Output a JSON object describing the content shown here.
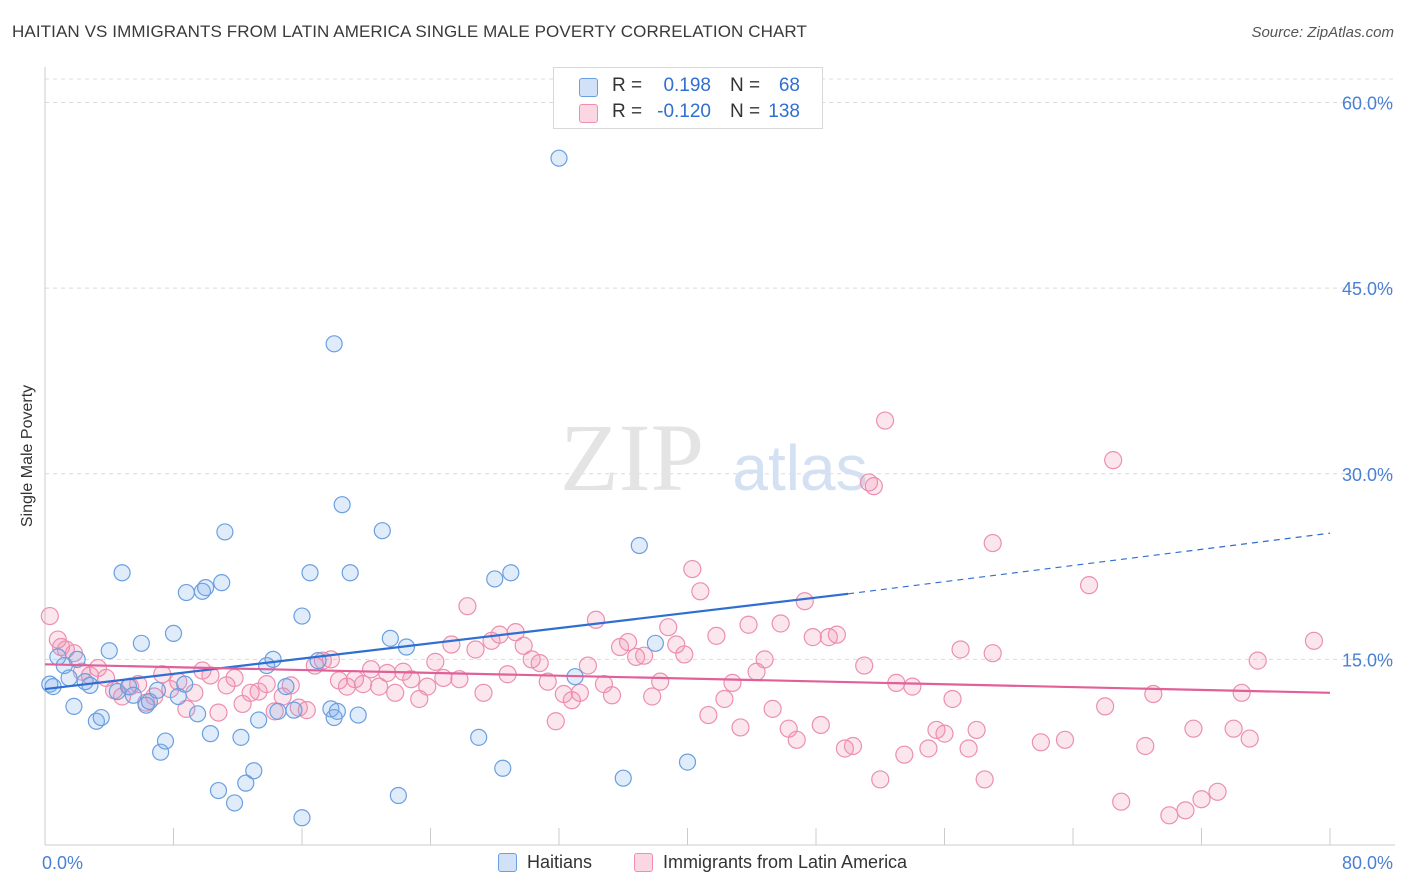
{
  "header": {
    "title": "HAITIAN VS IMMIGRANTS FROM LATIN AMERICA SINGLE MALE POVERTY CORRELATION CHART",
    "source": "Source: ZipAtlas.com"
  },
  "watermark": {
    "zip": "ZIP",
    "atlas": "atlas"
  },
  "colors": {
    "haitians_fill": "rgba(120,170,235,0.22)",
    "haitians_stroke": "#6a9fe0",
    "haitians_line": "#2f6fd1",
    "latin_fill": "rgba(240,140,175,0.22)",
    "latin_stroke": "#ec8fb0",
    "latin_line": "#e0609a",
    "tick_label": "#4a80d4",
    "grid": "#dcdcdc"
  },
  "legend_top": {
    "rows": [
      {
        "r_label": "R =",
        "r_value": "0.198",
        "n_label": "N =",
        "n_value": "68"
      },
      {
        "r_label": "R =",
        "r_value": "-0.120",
        "n_label": "N =",
        "n_value": "138"
      }
    ]
  },
  "legend_bottom": {
    "items": [
      "Haitians",
      "Immigrants from Latin America"
    ]
  },
  "chart_data": {
    "type": "scatter",
    "title": "HAITIAN VS IMMIGRANTS FROM LATIN AMERICA SINGLE MALE POVERTY CORRELATION CHART",
    "ylabel": "Single Male Poverty",
    "xlabel": "",
    "x_ticks": [
      "0.0%",
      "80.0%"
    ],
    "y_ticks": [
      "15.0%",
      "30.0%",
      "45.0%",
      "60.0%"
    ],
    "xlim": [
      0,
      80
    ],
    "ylim": [
      0,
      60
    ],
    "grid": "horizontal dashed",
    "legend_position": "top-center",
    "series": [
      {
        "name": "Haitians",
        "r": 0.198,
        "n": 68,
        "trend": {
          "x0": 0,
          "y0": 12.6,
          "x1": 50,
          "y1": 20.3,
          "dashed_to_x": 80,
          "dashed_to_y": 25.2
        },
        "points": [
          [
            0.3,
            13.0
          ],
          [
            0.5,
            12.8
          ],
          [
            0.8,
            15.2
          ],
          [
            1.2,
            14.5
          ],
          [
            1.5,
            13.5
          ],
          [
            1.8,
            11.2
          ],
          [
            2.0,
            15.0
          ],
          [
            2.5,
            13.2
          ],
          [
            2.8,
            12.9
          ],
          [
            3.2,
            10.0
          ],
          [
            3.5,
            10.3
          ],
          [
            4.0,
            15.7
          ],
          [
            4.5,
            12.4
          ],
          [
            4.8,
            22.0
          ],
          [
            5.2,
            12.8
          ],
          [
            5.5,
            12.1
          ],
          [
            6.0,
            16.3
          ],
          [
            6.3,
            11.3
          ],
          [
            6.5,
            11.6
          ],
          [
            7.0,
            12.5
          ],
          [
            7.2,
            7.5
          ],
          [
            7.5,
            8.4
          ],
          [
            8.0,
            17.1
          ],
          [
            8.3,
            12.0
          ],
          [
            8.7,
            13.0
          ],
          [
            8.8,
            20.4
          ],
          [
            9.5,
            10.6
          ],
          [
            9.8,
            20.5
          ],
          [
            10.0,
            20.8
          ],
          [
            10.3,
            9.0
          ],
          [
            10.8,
            4.4
          ],
          [
            11.0,
            21.2
          ],
          [
            11.2,
            25.3
          ],
          [
            11.8,
            3.4
          ],
          [
            12.2,
            8.7
          ],
          [
            12.5,
            5.0
          ],
          [
            13.0,
            6.0
          ],
          [
            13.3,
            10.1
          ],
          [
            13.8,
            14.5
          ],
          [
            14.2,
            15.0
          ],
          [
            14.5,
            10.8
          ],
          [
            15.0,
            12.8
          ],
          [
            15.5,
            10.9
          ],
          [
            16.0,
            18.5
          ],
          [
            16.5,
            22.0
          ],
          [
            16.0,
            2.2
          ],
          [
            17.0,
            14.9
          ],
          [
            17.8,
            11.0
          ],
          [
            18.0,
            10.3
          ],
          [
            18.2,
            10.8
          ],
          [
            18.0,
            40.5
          ],
          [
            18.5,
            27.5
          ],
          [
            19.0,
            22.0
          ],
          [
            19.5,
            10.5
          ],
          [
            21.0,
            25.4
          ],
          [
            21.5,
            16.7
          ],
          [
            22.0,
            4.0
          ],
          [
            22.5,
            16.0
          ],
          [
            27.0,
            8.7
          ],
          [
            28.0,
            21.5
          ],
          [
            28.5,
            6.2
          ],
          [
            29.0,
            22.0
          ],
          [
            32.0,
            55.5
          ],
          [
            33.0,
            13.6
          ],
          [
            36.0,
            5.4
          ],
          [
            37.0,
            24.2
          ],
          [
            38.0,
            16.3
          ],
          [
            40.0,
            6.7
          ]
        ]
      },
      {
        "name": "Immigrants from Latin America",
        "r": -0.12,
        "n": 138,
        "trend": {
          "x0": 0,
          "y0": 14.6,
          "x1": 80,
          "y1": 12.3
        },
        "points": [
          [
            0.3,
            18.5
          ],
          [
            0.8,
            16.6
          ],
          [
            1.3,
            15.8
          ],
          [
            1.8,
            15.5
          ],
          [
            2.3,
            14.0
          ],
          [
            2.8,
            13.7
          ],
          [
            3.3,
            14.3
          ],
          [
            3.8,
            13.5
          ],
          [
            4.3,
            12.5
          ],
          [
            4.8,
            12.0
          ],
          [
            5.3,
            12.8
          ],
          [
            5.8,
            13.0
          ],
          [
            6.3,
            11.5
          ],
          [
            6.8,
            12.0
          ],
          [
            7.3,
            13.8
          ],
          [
            7.8,
            12.6
          ],
          [
            8.3,
            13.2
          ],
          [
            8.8,
            11.0
          ],
          [
            9.3,
            12.3
          ],
          [
            9.8,
            14.1
          ],
          [
            10.3,
            13.7
          ],
          [
            10.8,
            10.7
          ],
          [
            11.3,
            12.9
          ],
          [
            11.8,
            13.5
          ],
          [
            12.3,
            11.4
          ],
          [
            12.8,
            12.3
          ],
          [
            13.3,
            12.4
          ],
          [
            13.8,
            13.0
          ],
          [
            14.3,
            10.8
          ],
          [
            14.8,
            12.0
          ],
          [
            15.3,
            12.9
          ],
          [
            15.8,
            11.1
          ],
          [
            16.3,
            10.9
          ],
          [
            16.8,
            14.5
          ],
          [
            17.3,
            14.9
          ],
          [
            17.8,
            15.0
          ],
          [
            18.3,
            13.3
          ],
          [
            18.8,
            12.8
          ],
          [
            19.3,
            13.4
          ],
          [
            19.8,
            13.0
          ],
          [
            20.3,
            14.2
          ],
          [
            20.8,
            12.8
          ],
          [
            21.3,
            13.9
          ],
          [
            21.8,
            12.3
          ],
          [
            22.3,
            14.0
          ],
          [
            22.8,
            13.4
          ],
          [
            23.3,
            11.8
          ],
          [
            23.8,
            12.8
          ],
          [
            24.3,
            14.8
          ],
          [
            24.8,
            13.5
          ],
          [
            25.3,
            16.2
          ],
          [
            25.8,
            13.4
          ],
          [
            26.3,
            19.3
          ],
          [
            26.8,
            15.8
          ],
          [
            27.3,
            12.3
          ],
          [
            27.8,
            16.5
          ],
          [
            28.3,
            17.0
          ],
          [
            28.8,
            13.8
          ],
          [
            29.3,
            17.2
          ],
          [
            29.8,
            16.1
          ],
          [
            30.3,
            15.0
          ],
          [
            30.8,
            14.7
          ],
          [
            31.3,
            13.2
          ],
          [
            31.8,
            10.0
          ],
          [
            32.3,
            12.2
          ],
          [
            32.8,
            11.7
          ],
          [
            33.3,
            12.3
          ],
          [
            33.8,
            14.5
          ],
          [
            34.3,
            18.2
          ],
          [
            34.8,
            13.0
          ],
          [
            35.3,
            12.1
          ],
          [
            35.8,
            16.0
          ],
          [
            36.3,
            16.4
          ],
          [
            36.8,
            15.2
          ],
          [
            37.3,
            15.3
          ],
          [
            37.8,
            12.0
          ],
          [
            38.3,
            13.2
          ],
          [
            38.8,
            17.6
          ],
          [
            39.3,
            16.2
          ],
          [
            39.8,
            15.4
          ],
          [
            40.3,
            22.3
          ],
          [
            40.8,
            20.5
          ],
          [
            41.3,
            10.5
          ],
          [
            41.8,
            16.9
          ],
          [
            42.3,
            11.8
          ],
          [
            42.8,
            13.1
          ],
          [
            43.3,
            9.5
          ],
          [
            43.8,
            17.8
          ],
          [
            44.3,
            14.0
          ],
          [
            44.8,
            15.0
          ],
          [
            45.3,
            11.0
          ],
          [
            45.8,
            17.9
          ],
          [
            46.3,
            9.4
          ],
          [
            46.8,
            8.5
          ],
          [
            47.3,
            19.7
          ],
          [
            47.8,
            16.8
          ],
          [
            48.3,
            9.7
          ],
          [
            48.8,
            16.8
          ],
          [
            49.3,
            17.0
          ],
          [
            49.8,
            7.8
          ],
          [
            50.3,
            8.0
          ],
          [
            51.0,
            14.5
          ],
          [
            51.3,
            29.3
          ],
          [
            51.6,
            29.0
          ],
          [
            52.0,
            5.3
          ],
          [
            52.3,
            34.3
          ],
          [
            53.0,
            13.1
          ],
          [
            53.5,
            7.3
          ],
          [
            54.0,
            12.8
          ],
          [
            55.0,
            7.8
          ],
          [
            55.5,
            9.3
          ],
          [
            56.0,
            9.0
          ],
          [
            56.5,
            11.8
          ],
          [
            57.0,
            15.8
          ],
          [
            57.5,
            7.8
          ],
          [
            58.0,
            9.3
          ],
          [
            58.5,
            5.3
          ],
          [
            59.0,
            24.4
          ],
          [
            59.0,
            15.5
          ],
          [
            62.0,
            8.3
          ],
          [
            63.5,
            8.5
          ],
          [
            65.0,
            21.0
          ],
          [
            66.0,
            11.2
          ],
          [
            66.5,
            31.1
          ],
          [
            67.0,
            3.5
          ],
          [
            68.5,
            8.0
          ],
          [
            69.0,
            12.2
          ],
          [
            70.0,
            2.4
          ],
          [
            71.0,
            2.8
          ],
          [
            71.5,
            9.4
          ],
          [
            72.0,
            3.7
          ],
          [
            73.0,
            4.3
          ],
          [
            74.0,
            9.4
          ],
          [
            74.5,
            12.3
          ],
          [
            75.0,
            8.6
          ],
          [
            75.5,
            14.9
          ],
          [
            79.0,
            16.5
          ],
          [
            1.0,
            16.0
          ]
        ]
      }
    ]
  }
}
